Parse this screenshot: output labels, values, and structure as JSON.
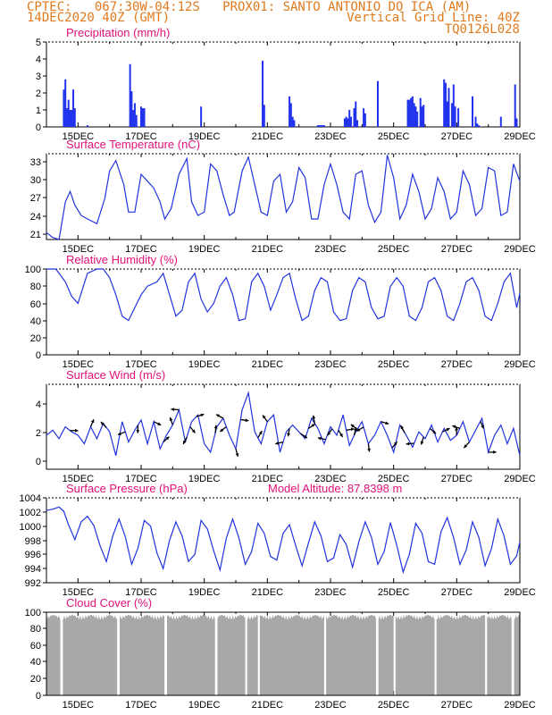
{
  "header": {
    "line1_left": "CPTEC:   067:30W-04:12S   PROX01: SANTO ANTONIO DO ICA (AM)",
    "line2_left": "14DEC2020 40Z (GMT)",
    "line2_right": "Vertical Grid Line: 40Z",
    "line3_right": "TQ0126L028"
  },
  "colors": {
    "header_text": "#e07a1f",
    "panel_title": "#e0127a",
    "series_line": "#2233dd",
    "precip_bar": "#2233ee",
    "cloud_fill": "#a8a8a8",
    "wind_arrow": "#000000"
  },
  "x_axis": {
    "tick_labels": [
      "15DEC",
      "17DEC",
      "19DEC",
      "21DEC",
      "23DEC",
      "25DEC",
      "27DEC",
      "29DEC"
    ],
    "start_day": 14.0,
    "end_day": 29.0
  },
  "chart_data": [
    {
      "type": "bar",
      "title": "Precipitation (mm/h)",
      "ylim": [
        0,
        5
      ],
      "yticks": [
        "0",
        "1",
        "2",
        "3",
        "4",
        "5"
      ],
      "x_day": [
        14.55,
        14.6,
        14.65,
        14.7,
        14.75,
        14.8,
        14.85,
        14.9,
        15.3,
        16.65,
        16.7,
        16.75,
        16.8,
        16.85,
        17.0,
        17.05,
        17.1,
        18.9,
        20.85,
        20.9,
        21.7,
        21.75,
        21.8,
        21.85,
        22.6,
        22.65,
        22.7,
        22.75,
        22.8,
        23.45,
        23.5,
        23.55,
        23.6,
        23.65,
        23.75,
        23.8,
        23.85,
        24.05,
        24.1,
        24.5,
        25.45,
        25.5,
        25.55,
        25.6,
        25.65,
        25.7,
        25.75,
        25.85,
        25.9,
        25.95,
        26.6,
        26.65,
        26.7,
        26.75,
        26.85,
        26.9,
        26.95,
        27.05,
        27.5,
        27.6,
        27.65,
        27.7,
        28.4,
        28.85,
        28.9
      ],
      "values": [
        2.2,
        2.8,
        1.1,
        1.6,
        1.0,
        1.0,
        2.2,
        1.1,
        0.1,
        3.7,
        2.1,
        1.0,
        1.4,
        0.7,
        1.2,
        1.1,
        1.1,
        1.2,
        3.9,
        1.3,
        1.8,
        1.4,
        0.6,
        0.4,
        0.1,
        0.1,
        0.1,
        0.1,
        0.1,
        0.5,
        0.6,
        0.5,
        1.0,
        0.6,
        1.1,
        1.5,
        0.4,
        1.1,
        0.8,
        2.7,
        1.6,
        1.6,
        1.7,
        1.8,
        1.4,
        1.2,
        0.9,
        1.7,
        1.2,
        1.3,
        2.8,
        2.6,
        1.5,
        2.3,
        1.4,
        2.5,
        1.2,
        1.1,
        1.8,
        0.6,
        0.2,
        0.1,
        0.6,
        2.5,
        0.5
      ]
    },
    {
      "type": "line",
      "title": "Surface Temperature (nC)",
      "ylim": [
        21,
        33.5
      ],
      "yticks": [
        "21",
        "24",
        "27",
        "30",
        "33"
      ],
      "x_day": [
        14.0,
        14.2,
        14.4,
        14.6,
        14.75,
        14.9,
        15.1,
        15.3,
        15.6,
        15.85,
        16.0,
        16.2,
        16.45,
        16.6,
        16.8,
        17.0,
        17.2,
        17.4,
        17.6,
        17.75,
        17.95,
        18.2,
        18.45,
        18.6,
        18.8,
        19.0,
        19.2,
        19.4,
        19.6,
        19.8,
        19.95,
        20.2,
        20.4,
        20.6,
        20.8,
        21.0,
        21.2,
        21.4,
        21.6,
        21.8,
        22.0,
        22.2,
        22.4,
        22.6,
        22.8,
        23.0,
        23.2,
        23.4,
        23.6,
        23.8,
        24.0,
        24.2,
        24.4,
        24.6,
        24.8,
        25.0,
        25.2,
        25.4,
        25.6,
        25.8,
        26.0,
        26.2,
        26.4,
        26.6,
        26.8,
        27.0,
        27.2,
        27.4,
        27.6,
        27.8,
        28.0,
        28.2,
        28.4,
        28.6,
        28.8,
        29.0
      ],
      "values": [
        22.0,
        21.3,
        21.0,
        26.5,
        28.0,
        26.0,
        24.5,
        24.0,
        23.3,
        27.0,
        31.0,
        32.5,
        29.0,
        25.0,
        25.0,
        30.5,
        29.5,
        28.5,
        26.5,
        24.0,
        25.5,
        30.5,
        32.8,
        26.5,
        24.5,
        25.0,
        32.0,
        31.0,
        27.5,
        24.5,
        25.0,
        31.0,
        33.0,
        29.0,
        25.0,
        24.5,
        29.5,
        30.5,
        25.0,
        26.5,
        31.5,
        30.0,
        24.0,
        24.0,
        29.0,
        32.0,
        29.0,
        25.0,
        24.0,
        30.5,
        31.0,
        26.0,
        23.5,
        25.0,
        33.3,
        30.0,
        24.0,
        26.0,
        30.5,
        28.0,
        24.0,
        25.5,
        30.0,
        28.0,
        24.0,
        25.0,
        31.0,
        29.0,
        24.5,
        25.5,
        31.5,
        31.0,
        24.5,
        25.0,
        32.0,
        29.5
      ]
    },
    {
      "type": "line",
      "title": "Relative Humidity (%)",
      "ylim": [
        0,
        100
      ],
      "yticks": [
        "0",
        "20",
        "40",
        "60",
        "80",
        "100"
      ],
      "x_day": [
        14.0,
        14.3,
        14.6,
        14.8,
        15.0,
        15.3,
        15.6,
        15.8,
        16.0,
        16.2,
        16.4,
        16.6,
        16.8,
        17.0,
        17.2,
        17.5,
        17.7,
        17.9,
        18.1,
        18.3,
        18.5,
        18.7,
        18.9,
        19.1,
        19.3,
        19.5,
        19.7,
        19.9,
        20.1,
        20.3,
        20.5,
        20.7,
        20.9,
        21.1,
        21.3,
        21.5,
        21.7,
        21.9,
        22.1,
        22.3,
        22.5,
        22.7,
        22.9,
        23.1,
        23.3,
        23.5,
        23.7,
        23.9,
        24.1,
        24.3,
        24.5,
        24.7,
        24.9,
        25.1,
        25.3,
        25.5,
        25.7,
        25.9,
        26.1,
        26.3,
        26.5,
        26.7,
        26.9,
        27.1,
        27.3,
        27.5,
        27.7,
        27.9,
        28.1,
        28.3,
        28.5,
        28.7,
        28.9,
        29.0
      ],
      "values": [
        100,
        100,
        85,
        68,
        60,
        95,
        100,
        100,
        90,
        70,
        45,
        40,
        55,
        70,
        80,
        85,
        95,
        70,
        45,
        52,
        85,
        95,
        65,
        50,
        60,
        80,
        90,
        70,
        40,
        42,
        85,
        95,
        80,
        52,
        70,
        90,
        95,
        65,
        40,
        45,
        75,
        90,
        85,
        50,
        40,
        42,
        75,
        90,
        85,
        55,
        42,
        45,
        80,
        90,
        80,
        45,
        40,
        55,
        85,
        90,
        75,
        45,
        40,
        60,
        85,
        90,
        75,
        45,
        40,
        60,
        85,
        95,
        55,
        72
      ]
    },
    {
      "type": "line",
      "title": "Surface Wind (m/s)",
      "ylim": [
        0,
        5
      ],
      "yticks": [
        "0",
        "2",
        "4"
      ],
      "x_day": [
        14.0,
        14.2,
        14.4,
        14.6,
        14.8,
        15.0,
        15.2,
        15.4,
        15.6,
        15.8,
        16.0,
        16.2,
        16.4,
        16.6,
        16.8,
        17.0,
        17.2,
        17.4,
        17.6,
        17.8,
        18.0,
        18.2,
        18.4,
        18.6,
        18.8,
        19.0,
        19.2,
        19.4,
        19.6,
        19.8,
        20.0,
        20.2,
        20.4,
        20.6,
        20.8,
        21.0,
        21.2,
        21.4,
        21.6,
        21.8,
        22.0,
        22.2,
        22.4,
        22.6,
        22.8,
        23.0,
        23.2,
        23.4,
        23.6,
        23.8,
        24.0,
        24.2,
        24.4,
        24.6,
        24.8,
        25.0,
        25.2,
        25.4,
        25.6,
        25.8,
        26.0,
        26.2,
        26.4,
        26.6,
        26.8,
        27.0,
        27.2,
        27.4,
        27.6,
        27.8,
        28.0,
        28.2,
        28.4,
        28.6,
        28.8,
        29.0
      ],
      "values": [
        2.0,
        2.3,
        1.8,
        2.5,
        2.2,
        2.0,
        1.5,
        2.5,
        1.8,
        2.7,
        2.2,
        0.8,
        2.8,
        1.6,
        2.3,
        2.9,
        1.5,
        2.8,
        1.2,
        2.0,
        2.6,
        3.5,
        1.6,
        2.8,
        3.2,
        1.5,
        1.0,
        2.5,
        3.0,
        2.0,
        1.2,
        3.5,
        4.5,
        2.2,
        1.5,
        2.8,
        3.2,
        1.0,
        2.2,
        2.6,
        2.2,
        1.8,
        3.0,
        2.4,
        1.5,
        2.5,
        2.0,
        3.2,
        1.4,
        2.2,
        2.8,
        1.5,
        2.0,
        2.8,
        2.0,
        1.0,
        2.6,
        2.0,
        1.3,
        2.2,
        1.8,
        2.6,
        1.6,
        2.4,
        1.7,
        2.0,
        2.8,
        1.6,
        2.3,
        3.0,
        1.0,
        2.0,
        2.6,
        1.5,
        2.4,
        0.8
      ],
      "arrows_day": [
        14.75,
        15.4,
        15.9,
        16.5,
        16.9,
        17.4,
        17.7,
        18.0,
        18.2,
        18.45,
        18.55,
        18.75,
        19.35,
        19.6,
        19.7,
        20.0,
        20.15,
        20.7,
        21.0,
        21.5,
        21.7,
        22.05,
        22.3,
        22.5,
        22.85,
        23.05,
        23.25,
        23.5,
        23.75,
        23.85,
        24.05,
        24.2,
        24.6,
        24.95,
        25.35,
        25.65,
        25.95,
        26.15,
        26.55,
        27.0,
        27.1,
        27.4,
        27.75,
        28.0
      ]
    },
    {
      "type": "line",
      "title": "Surface Pressure (hPa)",
      "annotation": "Model Altitude: 87.8398 m",
      "ylim": [
        992,
        1004
      ],
      "yticks": [
        "992",
        "994",
        "996",
        "998",
        "1000",
        "1002",
        "1004"
      ],
      "x_day": [
        14.0,
        14.2,
        14.4,
        14.55,
        14.7,
        14.9,
        15.1,
        15.3,
        15.5,
        15.7,
        15.9,
        16.1,
        16.3,
        16.5,
        16.7,
        16.9,
        17.1,
        17.3,
        17.5,
        17.7,
        17.9,
        18.1,
        18.3,
        18.5,
        18.7,
        18.9,
        19.1,
        19.3,
        19.5,
        19.7,
        19.9,
        20.1,
        20.3,
        20.5,
        20.7,
        20.9,
        21.1,
        21.3,
        21.5,
        21.7,
        21.9,
        22.1,
        22.3,
        22.5,
        22.7,
        22.9,
        23.1,
        23.3,
        23.5,
        23.7,
        23.9,
        24.1,
        24.3,
        24.5,
        24.7,
        24.9,
        25.1,
        25.3,
        25.5,
        25.7,
        25.9,
        26.1,
        26.3,
        26.5,
        26.7,
        26.9,
        27.1,
        27.3,
        27.5,
        27.7,
        27.9,
        28.1,
        28.3,
        28.5,
        28.7,
        28.9,
        29.0
      ],
      "values": [
        1002.2,
        1002.4,
        1002.7,
        1002.1,
        1000.2,
        998.1,
        1000.6,
        1001.4,
        1000.1,
        997.2,
        995.0,
        998.6,
        1001.0,
        998.5,
        994.6,
        996.9,
        1000.8,
        1000.0,
        996.2,
        994.0,
        998.0,
        1000.6,
        998.6,
        995.0,
        996.0,
        1000.8,
        999.6,
        996.5,
        993.8,
        998.3,
        1001.0,
        998.3,
        994.6,
        996.4,
        1000.4,
        999.0,
        995.7,
        995.2,
        999.0,
        1000.2,
        997.2,
        994.4,
        997.6,
        1000.6,
        998.6,
        995.0,
        995.5,
        998.8,
        997.4,
        994.2,
        997.8,
        1000.6,
        998.4,
        994.6,
        996.4,
        1000.5,
        997.3,
        993.5,
        996.0,
        1000.4,
        999.0,
        995.0,
        994.6,
        999.2,
        1001.2,
        998.4,
        994.6,
        996.6,
        1000.6,
        998.4,
        994.4,
        996.8,
        1001.0,
        998.6,
        994.6,
        995.8,
        997.8
      ]
    },
    {
      "type": "area",
      "title": "Cloud Cover (%)",
      "ylim": [
        0,
        100
      ],
      "yticks": [
        "0",
        "20",
        "40",
        "60",
        "80",
        "100"
      ],
      "gaps_day": [
        [
          14.45,
          14.5
        ],
        [
          16.25,
          16.3
        ],
        [
          17.75,
          17.8
        ],
        [
          19.35,
          19.4
        ],
        [
          20.3,
          20.35
        ],
        [
          20.7,
          20.75
        ],
        [
          22.8,
          22.85
        ],
        [
          24.45,
          24.5
        ],
        [
          25.0,
          25.05
        ],
        [
          26.3,
          26.35
        ],
        [
          27.9,
          27.95
        ],
        [
          28.75,
          28.8
        ]
      ],
      "typical_value": 97
    }
  ]
}
